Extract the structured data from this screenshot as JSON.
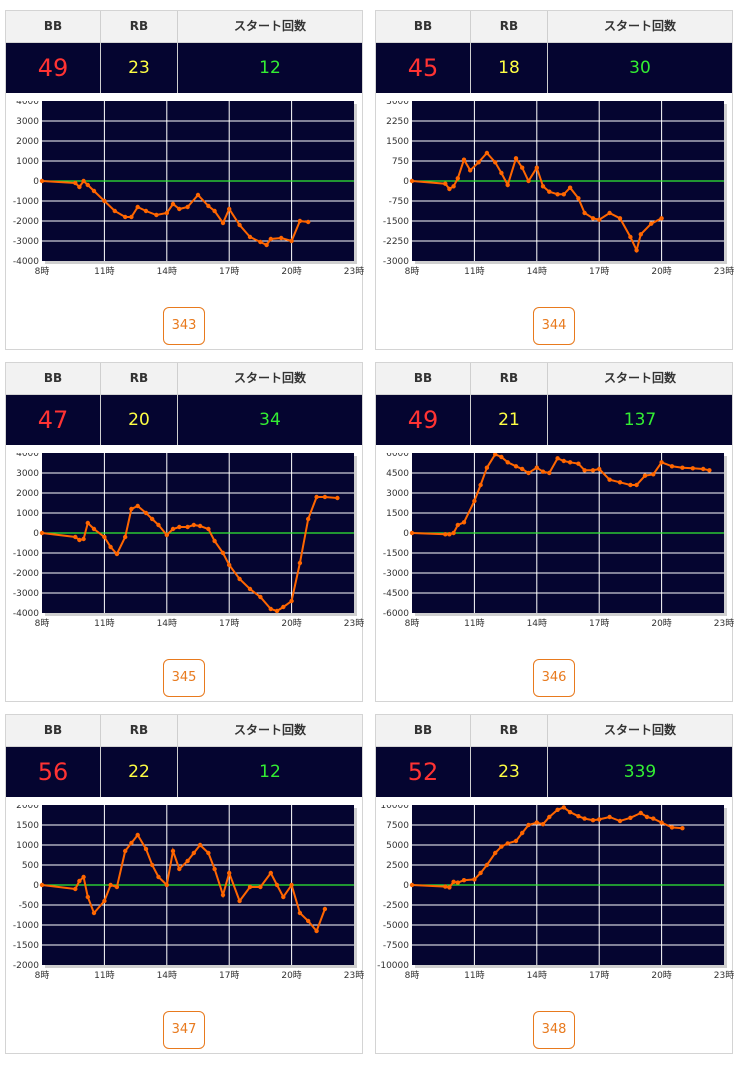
{
  "headers": {
    "bb": "BB",
    "rb": "RB",
    "start": "スタート回数"
  },
  "colors": {
    "bb": "#ff3333",
    "rb": "#ffff44",
    "start": "#33ee33",
    "line": "#ff6600",
    "plot_bg": "#050530",
    "zero_line": "#33ee33",
    "accent": "#e87a1e"
  },
  "cards": [
    {
      "machine_no": "343",
      "bb": "49",
      "rb": "23",
      "start": "12",
      "chart_data": {
        "type": "line",
        "x_ticks": [
          "8時",
          "11時",
          "14時",
          "17時",
          "20時",
          "23時"
        ],
        "x_range": [
          8,
          23
        ],
        "y_ticks": [
          "4000",
          "3000",
          "2000",
          "1000",
          "0",
          "-1000",
          "-2000",
          "-3000",
          "-4000"
        ],
        "ylim": [
          -4000,
          4000
        ],
        "x": [
          8,
          9.6,
          9.8,
          10,
          10.2,
          10.5,
          11,
          11.5,
          12,
          12.3,
          12.6,
          13,
          13.5,
          14,
          14.3,
          14.6,
          15,
          15.5,
          16,
          16.3,
          16.7,
          17,
          17.5,
          18,
          18.5,
          18.8,
          19,
          19.5,
          20,
          20.4,
          20.8
        ],
        "y": [
          0,
          -100,
          -300,
          0,
          -200,
          -500,
          -1000,
          -1500,
          -1800,
          -1800,
          -1300,
          -1500,
          -1700,
          -1600,
          -1150,
          -1400,
          -1300,
          -700,
          -1250,
          -1500,
          -2100,
          -1400,
          -2200,
          -2800,
          -3050,
          -3200,
          -2900,
          -2850,
          -3000,
          -2000,
          -2050
        ]
      }
    },
    {
      "machine_no": "344",
      "bb": "45",
      "rb": "18",
      "start": "30",
      "chart_data": {
        "type": "line",
        "x_ticks": [
          "8時",
          "11時",
          "14時",
          "17時",
          "20時",
          "23時"
        ],
        "x_range": [
          8,
          23
        ],
        "y_ticks": [
          "3000",
          "2250",
          "1500",
          "750",
          "0",
          "-750",
          "-1500",
          "-2250",
          "-3000"
        ],
        "ylim": [
          -3000,
          3000
        ],
        "x": [
          8,
          9.6,
          9.8,
          10,
          10.2,
          10.5,
          10.8,
          11.2,
          11.6,
          12,
          12.3,
          12.6,
          13,
          13.3,
          13.6,
          14,
          14.3,
          14.6,
          15,
          15.3,
          15.6,
          16,
          16.3,
          16.7,
          17,
          17.5,
          18,
          18.5,
          18.8,
          19,
          19.5,
          20
        ],
        "y": [
          0,
          -100,
          -300,
          -200,
          100,
          800,
          400,
          700,
          1050,
          700,
          300,
          -150,
          850,
          500,
          0,
          500,
          -200,
          -400,
          -500,
          -500,
          -250,
          -650,
          -1200,
          -1400,
          -1450,
          -1200,
          -1400,
          -2100,
          -2600,
          -2000,
          -1600,
          -1400
        ]
      }
    },
    {
      "machine_no": "345",
      "bb": "47",
      "rb": "20",
      "start": "34",
      "chart_data": {
        "type": "line",
        "x_ticks": [
          "8時",
          "11時",
          "14時",
          "17時",
          "20時",
          "23時"
        ],
        "x_range": [
          8,
          23
        ],
        "y_ticks": [
          "4000",
          "3000",
          "2000",
          "1000",
          "0",
          "-1000",
          "-2000",
          "-3000",
          "-4000"
        ],
        "ylim": [
          -4000,
          4000
        ],
        "x": [
          8,
          9.6,
          9.8,
          10,
          10.2,
          10.5,
          11,
          11.3,
          11.6,
          12,
          12.3,
          12.6,
          13,
          13.3,
          13.6,
          14,
          14.3,
          14.6,
          15,
          15.3,
          15.6,
          16,
          16.3,
          16.7,
          17,
          17.5,
          18,
          18.5,
          19,
          19.3,
          19.6,
          20,
          20.4,
          20.8,
          21.2,
          21.6,
          22.2
        ],
        "y": [
          0,
          -200,
          -350,
          -300,
          500,
          200,
          -200,
          -700,
          -1050,
          -200,
          1200,
          1350,
          1000,
          700,
          400,
          -100,
          200,
          300,
          300,
          400,
          350,
          200,
          -400,
          -1000,
          -1600,
          -2300,
          -2800,
          -3200,
          -3800,
          -3900,
          -3700,
          -3400,
          -1500,
          700,
          1800,
          1800,
          1750
        ]
      }
    },
    {
      "machine_no": "346",
      "bb": "49",
      "rb": "21",
      "start": "137",
      "chart_data": {
        "type": "line",
        "x_ticks": [
          "8時",
          "11時",
          "14時",
          "17時",
          "20時",
          "23時"
        ],
        "x_range": [
          8,
          23
        ],
        "y_ticks": [
          "6000",
          "4500",
          "3000",
          "1500",
          "0",
          "-1500",
          "-3000",
          "-4500",
          "-6000"
        ],
        "ylim": [
          -6000,
          6000
        ],
        "x": [
          8,
          9.6,
          9.8,
          10,
          10.2,
          10.5,
          11,
          11.3,
          11.6,
          12,
          12.3,
          12.6,
          13,
          13.3,
          13.6,
          14,
          14.3,
          14.6,
          15,
          15.3,
          15.6,
          16,
          16.3,
          16.7,
          17,
          17.5,
          18,
          18.5,
          18.8,
          19.2,
          19.6,
          20,
          20.5,
          21,
          21.5,
          22,
          22.3
        ],
        "y": [
          0,
          -100,
          -100,
          0,
          600,
          800,
          2400,
          3600,
          4900,
          5900,
          5700,
          5300,
          5000,
          4800,
          4500,
          4900,
          4600,
          4500,
          5600,
          5400,
          5300,
          5200,
          4700,
          4700,
          4800,
          4000,
          3800,
          3600,
          3600,
          4300,
          4400,
          5300,
          5000,
          4900,
          4850,
          4800,
          4700
        ]
      }
    },
    {
      "machine_no": "347",
      "bb": "56",
      "rb": "22",
      "start": "12",
      "chart_data": {
        "type": "line",
        "x_ticks": [
          "8時",
          "11時",
          "14時",
          "17時",
          "20時",
          "23時"
        ],
        "x_range": [
          8,
          23
        ],
        "y_ticks": [
          "2000",
          "1500",
          "1000",
          "500",
          "0",
          "-500",
          "-1000",
          "-1500",
          "-2000"
        ],
        "ylim": [
          -2000,
          2000
        ],
        "x": [
          8,
          9.6,
          9.8,
          10,
          10.2,
          10.5,
          11,
          11.3,
          11.6,
          12,
          12.3,
          12.6,
          13,
          13.3,
          13.6,
          14,
          14.3,
          14.6,
          15,
          15.3,
          15.6,
          16,
          16.3,
          16.7,
          17,
          17.5,
          18,
          18.5,
          19,
          19.3,
          19.6,
          20,
          20.4,
          20.8,
          21.2,
          21.6
        ],
        "y": [
          0,
          -100,
          100,
          200,
          -300,
          -700,
          -400,
          0,
          -50,
          850,
          1050,
          1250,
          900,
          500,
          200,
          0,
          850,
          400,
          600,
          800,
          1000,
          800,
          400,
          -250,
          300,
          -400,
          -50,
          -50,
          300,
          0,
          -300,
          0,
          -700,
          -900,
          -1150,
          -600
        ]
      }
    },
    {
      "machine_no": "348",
      "bb": "52",
      "rb": "23",
      "start": "339",
      "chart_data": {
        "type": "line",
        "x_ticks": [
          "8時",
          "11時",
          "14時",
          "17時",
          "20時",
          "23時"
        ],
        "x_range": [
          8,
          23
        ],
        "y_ticks": [
          "10000",
          "7500",
          "5000",
          "2500",
          "0",
          "-2500",
          "-5000",
          "-7500",
          "-10000"
        ],
        "ylim": [
          -10000,
          10000
        ],
        "x": [
          8,
          9.6,
          9.8,
          10,
          10.2,
          10.5,
          11,
          11.3,
          11.6,
          12,
          12.3,
          12.6,
          13,
          13.3,
          13.6,
          14,
          14.3,
          14.6,
          15,
          15.3,
          15.6,
          16,
          16.3,
          16.7,
          17,
          17.5,
          18,
          18.5,
          19,
          19.3,
          19.6,
          20,
          20.5,
          21
        ],
        "y": [
          0,
          -200,
          -300,
          400,
          300,
          600,
          700,
          1500,
          2500,
          4000,
          4800,
          5200,
          5500,
          6500,
          7500,
          7800,
          7600,
          8500,
          9400,
          9700,
          9100,
          8600,
          8300,
          8100,
          8200,
          8500,
          8000,
          8400,
          9000,
          8500,
          8300,
          7800,
          7200,
          7100
        ]
      }
    }
  ]
}
